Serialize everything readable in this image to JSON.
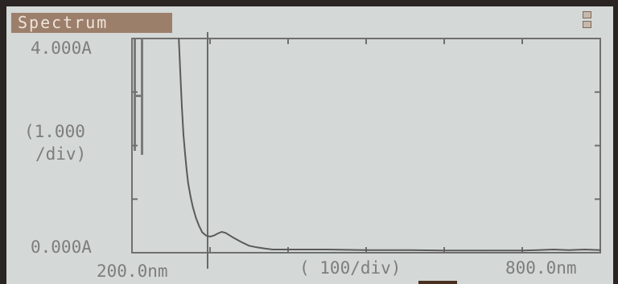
{
  "window": {
    "title": "Spectrum"
  },
  "y_axis": {
    "top_label": "4.000A",
    "bottom_label": "0.000A",
    "scale_line1": "(1.000",
    "scale_line2": "/div)"
  },
  "x_axis": {
    "left_label": "200.0nm",
    "right_label": "800.0nm",
    "scale_label": "( 100/div)"
  },
  "chart_data": {
    "type": "line",
    "xlabel": "( 100/div)",
    "ylabel": "(1.000 /div)",
    "xlim": [
      200,
      800
    ],
    "ylim": [
      0,
      4
    ],
    "units": {
      "x": "nm",
      "y": "A"
    },
    "grid": false,
    "series": [
      {
        "x": [
          260,
          262,
          264,
          266,
          268,
          270,
          272,
          275,
          278,
          282,
          286,
          290,
          295,
          300,
          305,
          310,
          315,
          320,
          330,
          340,
          350,
          360,
          370,
          380,
          400,
          450,
          500,
          550,
          600,
          650,
          700,
          720,
          740,
          760,
          780,
          800
        ],
        "y": [
          4.0,
          3.35,
          2.7,
          2.2,
          1.85,
          1.55,
          1.3,
          1.05,
          0.85,
          0.65,
          0.5,
          0.38,
          0.32,
          0.3,
          0.32,
          0.36,
          0.39,
          0.37,
          0.28,
          0.2,
          0.13,
          0.1,
          0.08,
          0.06,
          0.06,
          0.06,
          0.05,
          0.05,
          0.04,
          0.04,
          0.04,
          0.05,
          0.06,
          0.05,
          0.06,
          0.05
        ]
      }
    ]
  }
}
